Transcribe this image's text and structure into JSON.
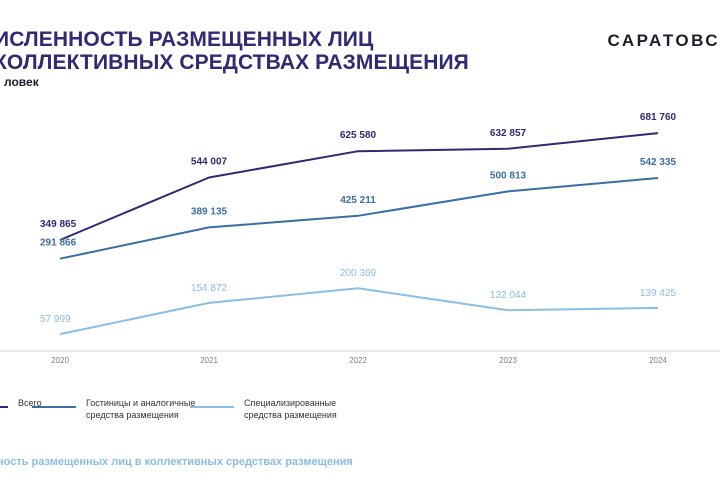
{
  "header": {
    "title_line1": "ИСЛЕННОСТЬ РАЗМЕЩЕННЫХ ЛИЦ",
    "title_line2": "КОЛЛЕКТИВНЫХ СРЕДСТВАХ РАЗМЕЩЕНИЯ",
    "unit": "ловек",
    "brand": "САРАТОВС"
  },
  "caption": "ность размещенных лиц в коллективных средствах размещения",
  "legend": {
    "items": [
      {
        "label": "Всего",
        "color": "#2f2a73"
      },
      {
        "label": "Гостиницы и аналогичные\nсредства размещения",
        "color": "#3a6ea5"
      },
      {
        "label": "Специализированные\nсредства размещения",
        "color": "#8cbde3"
      }
    ]
  },
  "chart_data": {
    "type": "line",
    "x": [
      "2020",
      "2021",
      "2022",
      "2023",
      "2024"
    ],
    "labels_visible": true,
    "grid": false,
    "legend_position": "bottom",
    "series": [
      {
        "name": "Всего",
        "color": "#2f2a73",
        "values": [
          349865,
          544007,
          625580,
          632857,
          681760
        ],
        "labels": [
          "349 865",
          "544 007",
          "625 580",
          "632 857",
          "681 760"
        ]
      },
      {
        "name": "Гостиницы и аналогичные средства размещения",
        "color": "#3a6ea5",
        "values": [
          291866,
          389135,
          425211,
          500813,
          542335
        ],
        "labels": [
          "291 866",
          "389 135",
          "425 211",
          "500 813",
          "542 335"
        ]
      },
      {
        "name": "Специализированные средства размещения",
        "color": "#8cbde3",
        "values": [
          57999,
          154872,
          200369,
          132044,
          139425
        ],
        "labels": [
          "57 999",
          "154 872",
          "200 369",
          "132 044",
          "139 425"
        ]
      }
    ]
  }
}
